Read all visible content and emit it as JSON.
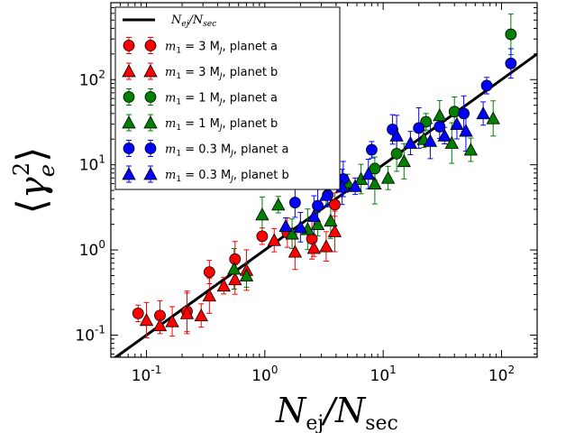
{
  "chart_data": {
    "type": "scatter",
    "xscale": "log",
    "yscale": "log",
    "xlim": [
      0.05,
      200
    ],
    "ylim": [
      0.055,
      800
    ],
    "xlabel": "N_ej/N_sec",
    "ylabel": "⟨γ_e^2⟩",
    "x_tick_labels": [
      "10^-1",
      "10^0",
      "10^1",
      "10^2"
    ],
    "y_tick_labels": [
      "10^-1",
      "10^0",
      "10^1",
      "10^2"
    ],
    "legend_position": "top-left",
    "reference_line": {
      "name": "N_ej/N_sec",
      "color": "#000000"
    },
    "series": [
      {
        "name": "m_1 = 3 M_J, planet a",
        "color": "#ff0000",
        "marker": "circle",
        "points": [
          {
            "x": 0.085,
            "y": 0.18
          },
          {
            "x": 0.13,
            "y": 0.17
          },
          {
            "x": 0.22,
            "y": 0.19
          },
          {
            "x": 0.34,
            "y": 0.55
          },
          {
            "x": 0.56,
            "y": 0.78
          },
          {
            "x": 0.95,
            "y": 1.45
          },
          {
            "x": 1.55,
            "y": 1.6
          },
          {
            "x": 2.5,
            "y": 1.35
          },
          {
            "x": 3.9,
            "y": 3.4
          }
        ]
      },
      {
        "name": "m_1 = 3 M_J, planet b",
        "color": "#ff0000",
        "marker": "triangle",
        "points": [
          {
            "x": 0.1,
            "y": 0.15
          },
          {
            "x": 0.13,
            "y": 0.13
          },
          {
            "x": 0.165,
            "y": 0.145
          },
          {
            "x": 0.22,
            "y": 0.18
          },
          {
            "x": 0.29,
            "y": 0.17
          },
          {
            "x": 0.34,
            "y": 0.29
          },
          {
            "x": 0.45,
            "y": 0.38
          },
          {
            "x": 0.56,
            "y": 0.45
          },
          {
            "x": 0.7,
            "y": 0.58
          },
          {
            "x": 1.2,
            "y": 1.3
          },
          {
            "x": 1.8,
            "y": 0.95
          },
          {
            "x": 2.6,
            "y": 1.05
          },
          {
            "x": 3.3,
            "y": 1.1
          },
          {
            "x": 3.9,
            "y": 1.65
          }
        ]
      },
      {
        "name": "m_1 = 1 M_J, planet a",
        "color": "#007f00",
        "marker": "circle",
        "points": [
          {
            "x": 8.5,
            "y": 9
          },
          {
            "x": 13,
            "y": 13.5
          },
          {
            "x": 23,
            "y": 32
          },
          {
            "x": 40,
            "y": 42
          },
          {
            "x": 120,
            "y": 340
          }
        ]
      },
      {
        "name": "m_1 = 1 M_J, planet b",
        "color": "#007f00",
        "marker": "triangle",
        "points": [
          {
            "x": 0.55,
            "y": 0.6
          },
          {
            "x": 0.7,
            "y": 0.5
          },
          {
            "x": 0.95,
            "y": 2.6
          },
          {
            "x": 1.3,
            "y": 3.4
          },
          {
            "x": 1.7,
            "y": 1.55
          },
          {
            "x": 2.3,
            "y": 1.75
          },
          {
            "x": 2.8,
            "y": 2.0
          },
          {
            "x": 3.6,
            "y": 2.2
          },
          {
            "x": 5,
            "y": 6.2
          },
          {
            "x": 6.5,
            "y": 6.8
          },
          {
            "x": 8.5,
            "y": 6
          },
          {
            "x": 11,
            "y": 7
          },
          {
            "x": 15,
            "y": 11
          },
          {
            "x": 22,
            "y": 20
          },
          {
            "x": 30,
            "y": 38
          },
          {
            "x": 38,
            "y": 18
          },
          {
            "x": 55,
            "y": 15
          },
          {
            "x": 85,
            "y": 35
          }
        ]
      },
      {
        "name": "m_1 = 0.3 M_J, planet a",
        "color": "#0000ff",
        "marker": "circle",
        "points": [
          {
            "x": 1.8,
            "y": 3.6
          },
          {
            "x": 2.8,
            "y": 3.3
          },
          {
            "x": 3.4,
            "y": 4.4
          },
          {
            "x": 4.6,
            "y": 6.8
          },
          {
            "x": 8,
            "y": 15
          },
          {
            "x": 12,
            "y": 26
          },
          {
            "x": 20,
            "y": 27
          },
          {
            "x": 30,
            "y": 28
          },
          {
            "x": 48,
            "y": 40
          },
          {
            "x": 75,
            "y": 85
          },
          {
            "x": 120,
            "y": 155
          }
        ]
      },
      {
        "name": "m_1 = 0.3 M_J, planet b",
        "color": "#0000ff",
        "marker": "triangle",
        "points": [
          {
            "x": 1.5,
            "y": 1.9
          },
          {
            "x": 2.0,
            "y": 1.85
          },
          {
            "x": 2.6,
            "y": 2.5
          },
          {
            "x": 3.3,
            "y": 4.4
          },
          {
            "x": 4.5,
            "y": 5.5
          },
          {
            "x": 5.8,
            "y": 5.6
          },
          {
            "x": 7.5,
            "y": 7.8
          },
          {
            "x": 13,
            "y": 22
          },
          {
            "x": 17,
            "y": 18
          },
          {
            "x": 25,
            "y": 19
          },
          {
            "x": 33,
            "y": 22
          },
          {
            "x": 42,
            "y": 30
          },
          {
            "x": 50,
            "y": 25
          },
          {
            "x": 70,
            "y": 40
          }
        ]
      }
    ]
  }
}
